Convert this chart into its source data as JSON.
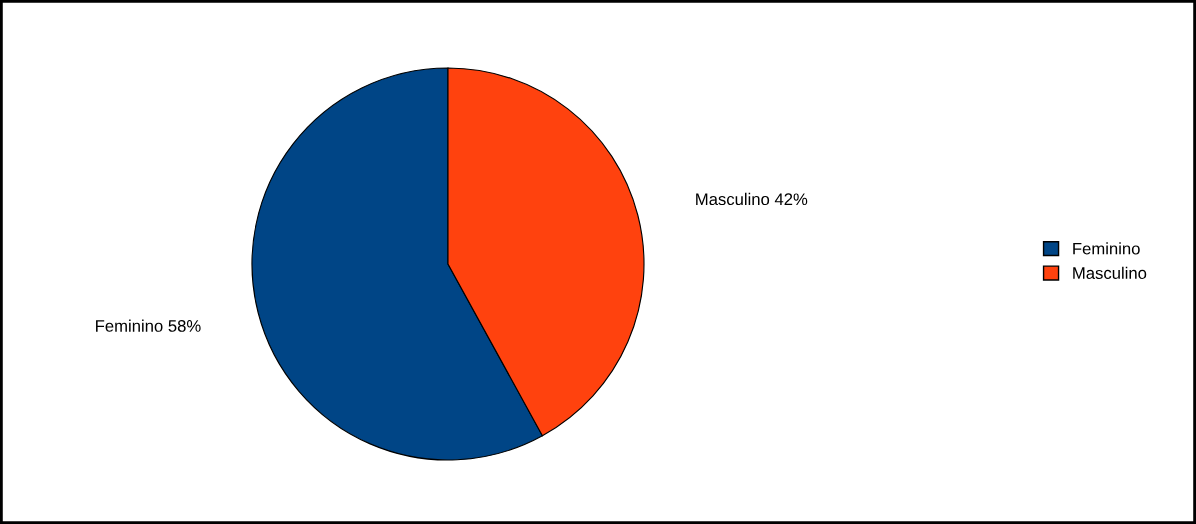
{
  "chart_data": {
    "type": "pie",
    "categories": [
      "Feminino",
      "Masculino"
    ],
    "values": [
      58,
      42
    ],
    "colors": [
      "#004586",
      "#ff420e"
    ],
    "value_labels": [
      "Feminino 58%",
      "Masculino 42%"
    ],
    "legend": "right"
  }
}
